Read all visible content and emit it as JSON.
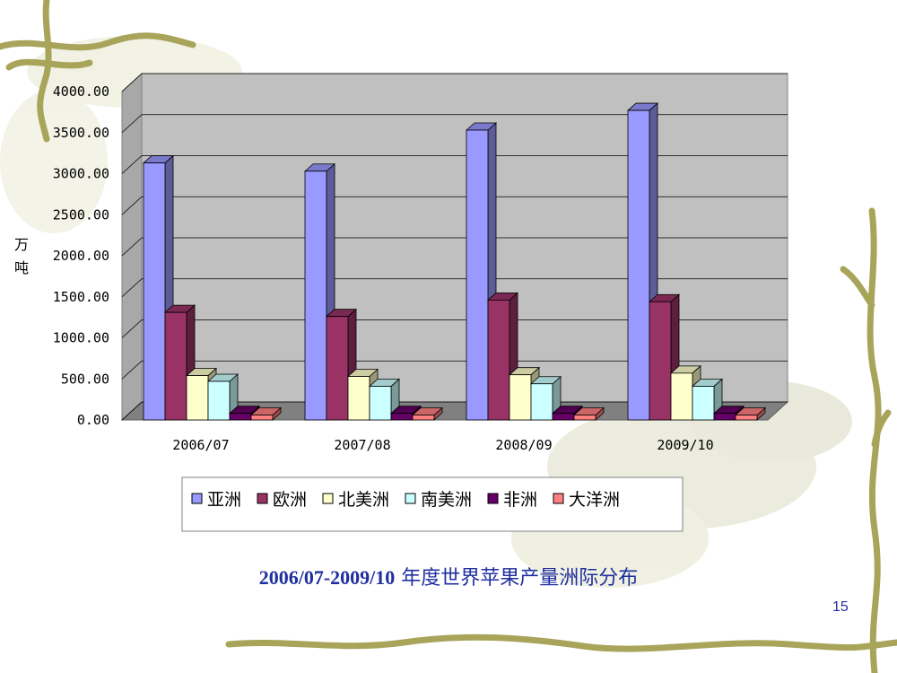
{
  "slide": {
    "caption_range": "2006/07-2009/10",
    "caption_rest": " 年度世界苹果产量洲际分布",
    "page_number": "15",
    "colors": {
      "caption": "#1f2f9f",
      "plot_wall": "#c0c0c0",
      "plot_floor": "#808080"
    }
  },
  "chart_data": {
    "type": "bar",
    "title": "",
    "xlabel": "",
    "ylabel": "万吨",
    "ylim": [
      0,
      4000
    ],
    "yticks": [
      "0.00",
      "500.00",
      "1000.00",
      "1500.00",
      "2000.00",
      "2500.00",
      "3000.00",
      "3500.00",
      "4000.00"
    ],
    "grid": true,
    "legend_position": "bottom",
    "categories": [
      "2006/07",
      "2007/08",
      "2008/09",
      "2009/10"
    ],
    "series": [
      {
        "name": "亚洲",
        "color": "#9999ff",
        "values": [
          3130,
          3030,
          3530,
          3770
        ]
      },
      {
        "name": "欧洲",
        "color": "#993366",
        "values": [
          1310,
          1260,
          1460,
          1440
        ]
      },
      {
        "name": "北美洲",
        "color": "#ffffcc",
        "values": [
          540,
          530,
          550,
          570
        ]
      },
      {
        "name": "南美洲",
        "color": "#ccffff",
        "values": [
          470,
          410,
          440,
          410
        ]
      },
      {
        "name": "非洲",
        "color": "#660066",
        "values": [
          80,
          80,
          80,
          80
        ]
      },
      {
        "name": "大洋洲",
        "color": "#ff8080",
        "values": [
          60,
          60,
          60,
          60
        ]
      }
    ]
  }
}
